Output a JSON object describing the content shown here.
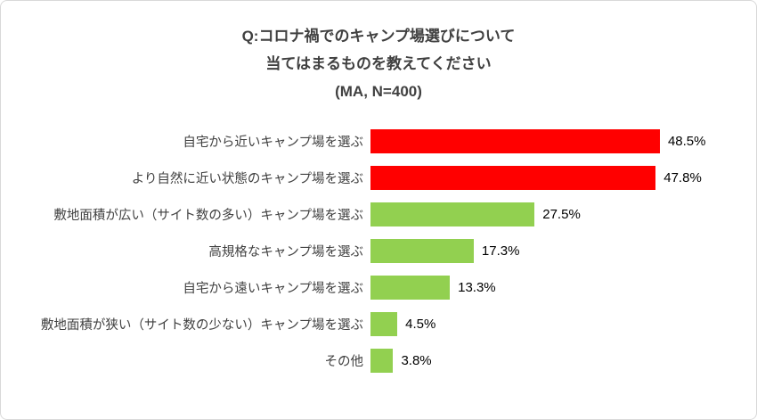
{
  "chart": {
    "title_lines": [
      "Q:コロナ禍でのキャンプ場選びについて",
      "当てはまるものを教えてください",
      "(MA, N=400)"
    ]
  },
  "chart_data": {
    "type": "bar",
    "orientation": "horizontal",
    "title": "Q:コロナ禍でのキャンプ場選びについて 当てはまるものを教えてください (MA, N=400)",
    "categories": [
      "自宅から近いキャンプ場を選ぶ",
      "より自然に近い状態のキャンプ場を選ぶ",
      "敷地面積が広い（サイト数の多い）キャンプ場を選ぶ",
      "高規格なキャンプ場を選ぶ",
      "自宅から遠いキャンプ場を選ぶ",
      "敷地面積が狭い（サイト数の少ない）キャンプ場を選ぶ",
      "その他"
    ],
    "values": [
      48.5,
      47.8,
      27.5,
      17.3,
      13.3,
      4.5,
      3.8
    ],
    "value_labels": [
      "48.5%",
      "47.8%",
      "27.5%",
      "17.3%",
      "13.3%",
      "4.5%",
      "3.8%"
    ],
    "bar_colors": [
      "#ff0000",
      "#ff0000",
      "#92d050",
      "#92d050",
      "#92d050",
      "#92d050",
      "#92d050"
    ],
    "accent_red": "#ff0000",
    "accent_green": "#92d050",
    "xlabel": "",
    "ylabel": "",
    "xlim": [
      0,
      50
    ],
    "grid": false,
    "legend": false,
    "data_labels": "outside-end"
  }
}
